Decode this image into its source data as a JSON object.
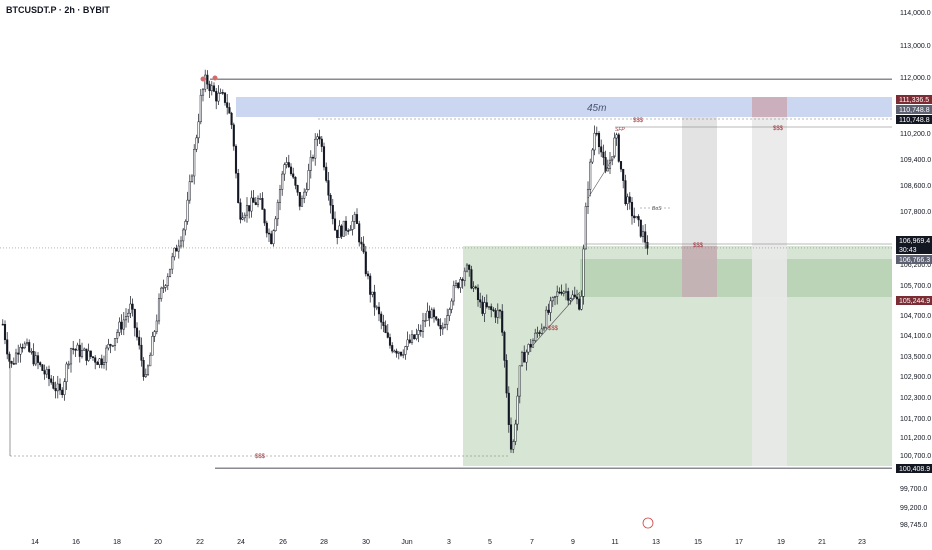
{
  "header": {
    "title": "BTCUSDT.P · 2h · BYBIT"
  },
  "chart_data": {
    "type": "candlestick",
    "symbol": "BTCUSDT.P",
    "interval": "2h",
    "exchange": "BYBIT",
    "y_ticks": [
      "114,000.0",
      "113,000.0",
      "112,000.0",
      "110,200.0",
      "109,400.0",
      "108,600.0",
      "107,800.0",
      "106,200.0",
      "105,700.0",
      "104,700.0",
      "104,100.0",
      "103,500.0",
      "102,900.0",
      "102,300.0",
      "101,700.0",
      "101,200.0",
      "100,700.0",
      "99,700.0",
      "99,200.0",
      "98,745.0"
    ],
    "x_ticks": [
      "14",
      "16",
      "18",
      "20",
      "22",
      "24",
      "26",
      "28",
      "30",
      "Jun",
      "3",
      "5",
      "7",
      "9",
      "11",
      "13",
      "15",
      "17",
      "19",
      "21",
      "23"
    ],
    "price_tags": [
      {
        "label": "111,336.5",
        "price": 111336.5,
        "color": "#7b2c34"
      },
      {
        "label": "110,748.8",
        "price": 110990,
        "color": "#5c6070"
      },
      {
        "label": "110,748.8",
        "price": 110748.8,
        "color": "#131722"
      },
      {
        "label": "106,969.4",
        "price": 106969.4,
        "color": "#131722",
        "sub": "30:43"
      },
      {
        "label": "106,766.3",
        "price": 106766.3,
        "color": "#5c6070"
      },
      {
        "label": "105,244.9",
        "price": 105244.9,
        "color": "#7b2c34"
      },
      {
        "label": "100,408.9",
        "price": 100408.9,
        "color": "#131722"
      }
    ],
    "annotations": [
      {
        "text": "45m",
        "kind": "zone-label"
      },
      {
        "text": "$$$",
        "kind": "liquidity"
      },
      {
        "text": "SFP",
        "kind": "label"
      },
      {
        "text": "BoS",
        "kind": "label"
      }
    ],
    "key_levels": {
      "high": 112000,
      "zone_top": 111336.5,
      "zone_bottom": 110748.8,
      "last": 106969.4,
      "demand_top": 106766.3,
      "demand_bottom": 105244.9,
      "low": 100408.9
    },
    "grid": false,
    "colors": {
      "up": "#ffffff",
      "down": "#131722",
      "zone_blue": "#c5d3ee",
      "zone_green": "#c9dec6",
      "zone_purple": "#c9a9b8",
      "zone_gray": "#e0e0e0",
      "liquidity": "#9e2f36"
    }
  }
}
